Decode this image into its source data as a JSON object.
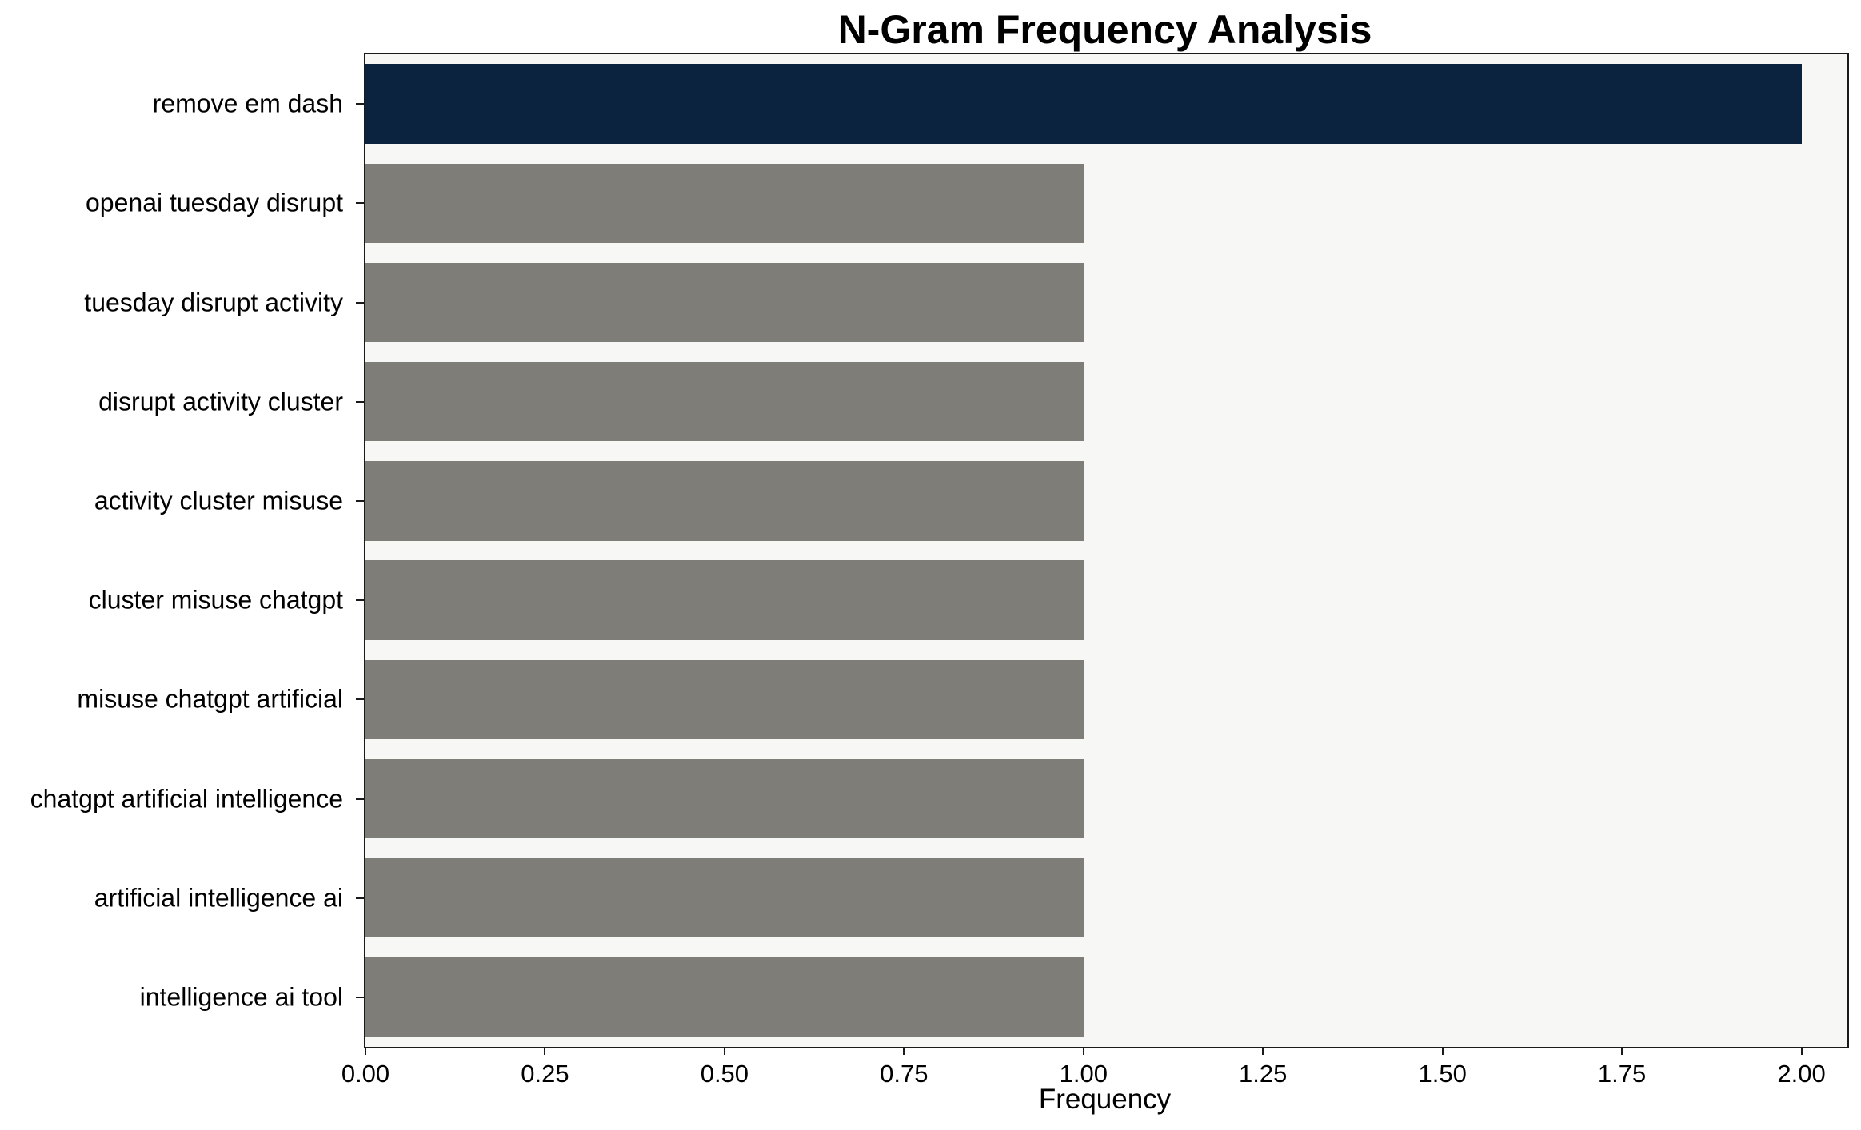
{
  "chart_data": {
    "type": "bar",
    "orientation": "horizontal",
    "title": "N-Gram Frequency Analysis",
    "xlabel": "Frequency",
    "ylabel": "",
    "categories": [
      "remove em dash",
      "openai tuesday disrupt",
      "tuesday disrupt activity",
      "disrupt activity cluster",
      "activity cluster misuse",
      "cluster misuse chatgpt",
      "misuse chatgpt artificial",
      "chatgpt artificial intelligence",
      "artificial intelligence ai",
      "intelligence ai tool"
    ],
    "values": [
      2,
      1,
      1,
      1,
      1,
      1,
      1,
      1,
      1,
      1
    ],
    "bar_colors": [
      "#0c2340",
      "#7f7d77",
      "#7f7d77",
      "#7f7d77",
      "#7f7d77",
      "#7f7d77",
      "#7f7d77",
      "#7f7d77",
      "#7f7d77",
      "#7f7d77"
    ],
    "xlim": [
      0,
      2.064
    ],
    "xticks": [
      {
        "value": 0.0,
        "label": "0.00"
      },
      {
        "value": 0.25,
        "label": "0.25"
      },
      {
        "value": 0.5,
        "label": "0.50"
      },
      {
        "value": 0.75,
        "label": "0.75"
      },
      {
        "value": 1.0,
        "label": "1.00"
      },
      {
        "value": 1.25,
        "label": "1.25"
      },
      {
        "value": 1.5,
        "label": "1.50"
      },
      {
        "value": 1.75,
        "label": "1.75"
      },
      {
        "value": 2.0,
        "label": "2.00"
      }
    ],
    "grid": false,
    "legend": false,
    "plot_background": "#f7f7f5",
    "bar_height_fraction": 0.8
  }
}
